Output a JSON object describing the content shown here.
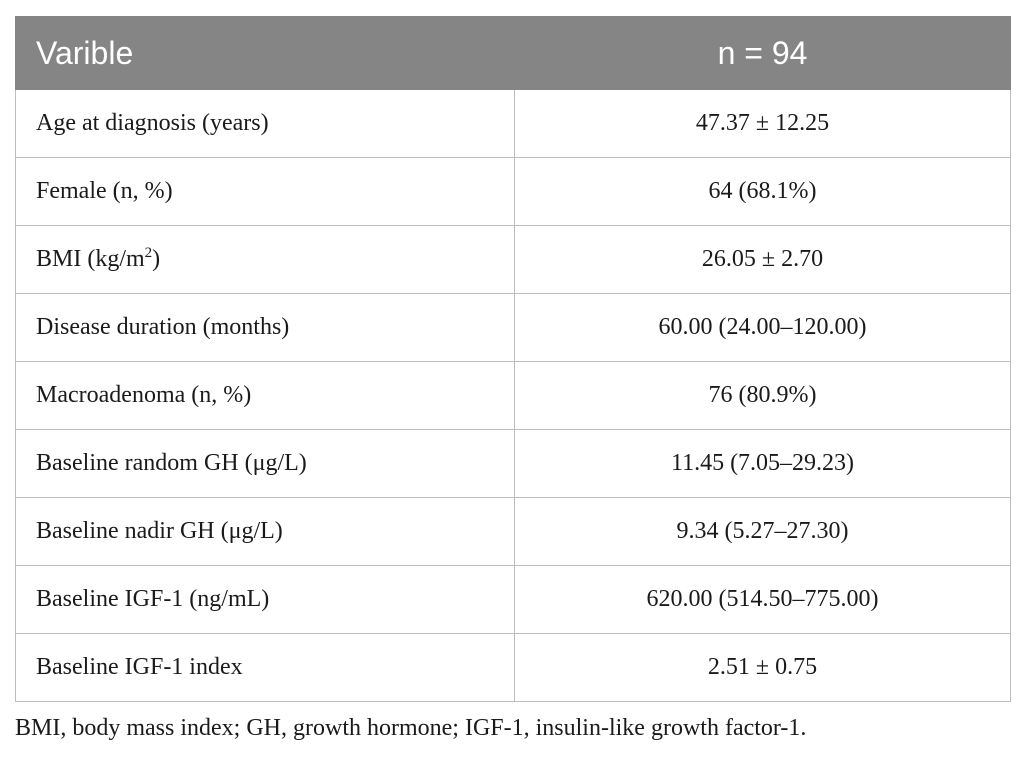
{
  "table": {
    "headers": [
      "Varible",
      "n = 94"
    ],
    "rows": [
      {
        "variable": "Age at diagnosis (years)",
        "value": "47.37 ± 12.25"
      },
      {
        "variable": "Female (n, %)",
        "value": "64 (68.1%)"
      },
      {
        "variable_prefix": "BMI (kg/m",
        "variable_sup": "2",
        "variable_suffix": ")",
        "value": "26.05 ± 2.70"
      },
      {
        "variable": "Disease duration (months)",
        "value": "60.00 (24.00–120.00)"
      },
      {
        "variable": "Macroadenoma (n, %)",
        "value": "76 (80.9%)"
      },
      {
        "variable": "Baseline random GH (μg/L)",
        "value": "11.45 (7.05–29.23)"
      },
      {
        "variable": "Baseline nadir GH (μg/L)",
        "value": "9.34 (5.27–27.30)"
      },
      {
        "variable": "Baseline IGF-1 (ng/mL)",
        "value": "620.00 (514.50–775.00)"
      },
      {
        "variable": "Baseline IGF-1 index",
        "value": "2.51 ± 0.75"
      }
    ]
  },
  "footnote": "BMI, body mass index; GH, growth hormone; IGF-1, insulin-like growth factor-1.",
  "colors": {
    "header_bg": "#858585",
    "header_text": "#ffffff",
    "border": "#bdbdbd"
  }
}
